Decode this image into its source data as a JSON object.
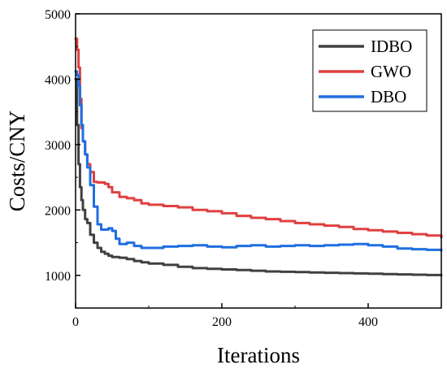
{
  "chart_data": {
    "type": "line",
    "title": "",
    "xlabel": "Iterations",
    "ylabel": "Costs/CNY",
    "xlim": [
      0,
      500
    ],
    "ylim": [
      500,
      5000
    ],
    "xticks": [
      0,
      200,
      400
    ],
    "yticks": [
      1000,
      2000,
      3000,
      4000,
      5000
    ],
    "grid": false,
    "legend": "top-right",
    "series": [
      {
        "name": "IDBO",
        "color": "#404040",
        "x": [
          0,
          2,
          4,
          6,
          8,
          10,
          13,
          16,
          20,
          25,
          30,
          35,
          40,
          45,
          50,
          60,
          70,
          80,
          90,
          100,
          120,
          140,
          160,
          180,
          200,
          220,
          240,
          260,
          280,
          300,
          320,
          340,
          360,
          380,
          400,
          420,
          440,
          460,
          480,
          500
        ],
        "y": [
          4000,
          3300,
          2700,
          2350,
          2150,
          2000,
          1860,
          1800,
          1620,
          1500,
          1420,
          1360,
          1330,
          1300,
          1280,
          1270,
          1250,
          1220,
          1200,
          1180,
          1160,
          1130,
          1110,
          1100,
          1090,
          1080,
          1070,
          1060,
          1055,
          1050,
          1045,
          1040,
          1035,
          1030,
          1025,
          1020,
          1015,
          1010,
          1005,
          1000
        ]
      },
      {
        "name": "GWO",
        "color": "#e04040",
        "x": [
          0,
          2,
          4,
          6,
          8,
          10,
          13,
          16,
          20,
          25,
          30,
          35,
          40,
          45,
          50,
          60,
          70,
          80,
          90,
          100,
          120,
          140,
          160,
          180,
          200,
          220,
          240,
          260,
          280,
          300,
          320,
          340,
          360,
          380,
          400,
          420,
          440,
          460,
          480,
          500
        ],
        "y": [
          4620,
          4450,
          4180,
          3700,
          3250,
          3050,
          2850,
          2700,
          2580,
          2430,
          2420,
          2420,
          2400,
          2350,
          2270,
          2200,
          2180,
          2150,
          2100,
          2080,
          2060,
          2040,
          2000,
          1980,
          1950,
          1910,
          1880,
          1860,
          1830,
          1800,
          1780,
          1760,
          1740,
          1710,
          1690,
          1670,
          1650,
          1630,
          1610,
          1580
        ]
      },
      {
        "name": "DBO",
        "color": "#1f6fe0",
        "x": [
          0,
          2,
          4,
          6,
          8,
          10,
          13,
          16,
          20,
          25,
          30,
          35,
          40,
          45,
          50,
          55,
          60,
          70,
          80,
          90,
          100,
          120,
          140,
          160,
          180,
          200,
          220,
          240,
          260,
          280,
          300,
          320,
          340,
          360,
          380,
          400,
          420,
          440,
          460,
          480,
          500
        ],
        "y": [
          4120,
          4060,
          3900,
          3600,
          3300,
          3050,
          2850,
          2650,
          2380,
          2050,
          1780,
          1700,
          1700,
          1720,
          1680,
          1560,
          1480,
          1500,
          1450,
          1420,
          1420,
          1440,
          1450,
          1460,
          1440,
          1430,
          1450,
          1460,
          1440,
          1450,
          1460,
          1450,
          1460,
          1470,
          1480,
          1460,
          1440,
          1410,
          1400,
          1390,
          1380
        ]
      }
    ]
  }
}
